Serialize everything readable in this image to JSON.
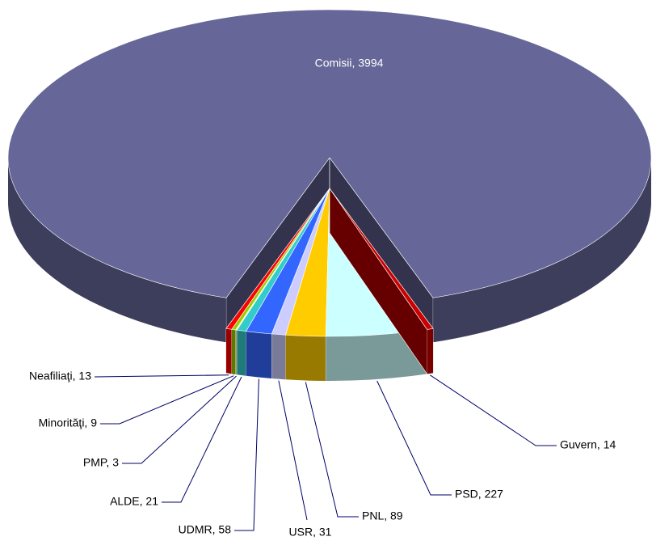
{
  "chart_data": {
    "type": "pie3d",
    "values": [
      3994,
      14,
      227,
      89,
      31,
      58,
      21,
      3,
      9,
      13
    ],
    "value_labels": [
      "Comisii, 3994",
      "Guvern, 14",
      "PSD, 227",
      "PNL, 89",
      "USR, 31",
      "UDMR, 58",
      "ALDE, 21",
      "PMP, 3",
      "Minorităţi, 9",
      "Neafiliaţi, 13"
    ],
    "colors": [
      "#666699",
      "#cc0000",
      "#ccffff",
      "#ffcc00",
      "#ccccff",
      "#3366ff",
      "#33cccc",
      "#ffff99",
      "#99cc00",
      "#ff0000"
    ]
  }
}
